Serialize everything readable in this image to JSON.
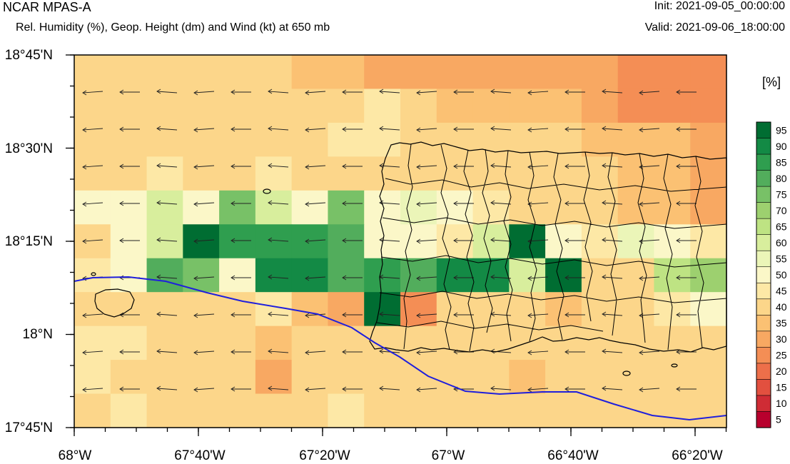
{
  "header": {
    "model": "NCAR MPAS-A",
    "description": "Rel. Humidity (%), Geop. Height (dm) and Wind (kt) at 650 mb",
    "init": "Init: 2021-09-05_00:00:00",
    "valid": "Valid: 2021-09-06_18:00:00"
  },
  "map": {
    "lat_labels": [
      "18°45'N",
      "18°30'N",
      "18°15'N",
      "18°N",
      "17°45'N"
    ],
    "lon_labels": [
      "68°W",
      "67°40'W",
      "67°20'W",
      "67°W",
      "66°40'W",
      "66°20'W"
    ],
    "lat_range": [
      17.75,
      18.75
    ],
    "lon_range": [
      -68.0,
      -66.25
    ],
    "contour_color": "#1f1fdc",
    "wind_direction": "easterly",
    "grid_rh": [
      [
        40,
        40,
        40,
        40,
        40,
        40,
        35,
        35,
        30,
        30,
        30,
        30,
        30,
        30,
        30,
        25,
        25,
        25
      ],
      [
        40,
        40,
        40,
        40,
        40,
        40,
        40,
        40,
        45,
        40,
        35,
        35,
        35,
        35,
        30,
        25,
        25,
        25
      ],
      [
        40,
        40,
        40,
        40,
        40,
        40,
        40,
        45,
        45,
        40,
        40,
        40,
        40,
        40,
        35,
        35,
        35,
        30
      ],
      [
        40,
        40,
        45,
        40,
        40,
        45,
        40,
        40,
        40,
        40,
        40,
        40,
        40,
        40,
        40,
        35,
        35,
        30
      ],
      [
        50,
        50,
        60,
        50,
        75,
        60,
        50,
        75,
        50,
        55,
        50,
        45,
        40,
        40,
        40,
        35,
        35,
        30
      ],
      [
        40,
        50,
        60,
        95,
        85,
        85,
        85,
        80,
        50,
        50,
        45,
        60,
        95,
        50,
        45,
        55,
        50,
        45
      ],
      [
        45,
        50,
        80,
        75,
        50,
        90,
        90,
        80,
        85,
        80,
        90,
        90,
        60,
        95,
        40,
        40,
        65,
        70
      ],
      [
        40,
        40,
        40,
        40,
        40,
        45,
        35,
        30,
        95,
        25,
        40,
        40,
        40,
        35,
        40,
        40,
        45,
        50
      ],
      [
        45,
        45,
        40,
        40,
        40,
        35,
        40,
        40,
        40,
        40,
        40,
        40,
        40,
        40,
        40,
        40,
        40,
        40
      ],
      [
        45,
        40,
        40,
        40,
        40,
        30,
        40,
        40,
        40,
        40,
        40,
        40,
        35,
        40,
        40,
        40,
        40,
        40
      ],
      [
        40,
        45,
        40,
        40,
        40,
        40,
        40,
        45,
        40,
        40,
        40,
        40,
        40,
        40,
        40,
        40,
        40,
        40
      ]
    ]
  },
  "colorbar": {
    "unit": "[%]",
    "levels": [
      "95",
      "90",
      "85",
      "80",
      "75",
      "70",
      "65",
      "60",
      "55",
      "50",
      "45",
      "40",
      "35",
      "30",
      "25",
      "20",
      "15",
      "10",
      "5"
    ],
    "colors": [
      "#006d32",
      "#138a45",
      "#2f9e4f",
      "#52ad5c",
      "#78c167",
      "#9dd06f",
      "#bee383",
      "#d8ee9d",
      "#ebf5b8",
      "#fbf7c8",
      "#fde8a6",
      "#fcd68a",
      "#fbc173",
      "#f8a862",
      "#f48e55",
      "#ed6f4a",
      "#e2503f",
      "#cf2c35",
      "#b8002d"
    ]
  }
}
